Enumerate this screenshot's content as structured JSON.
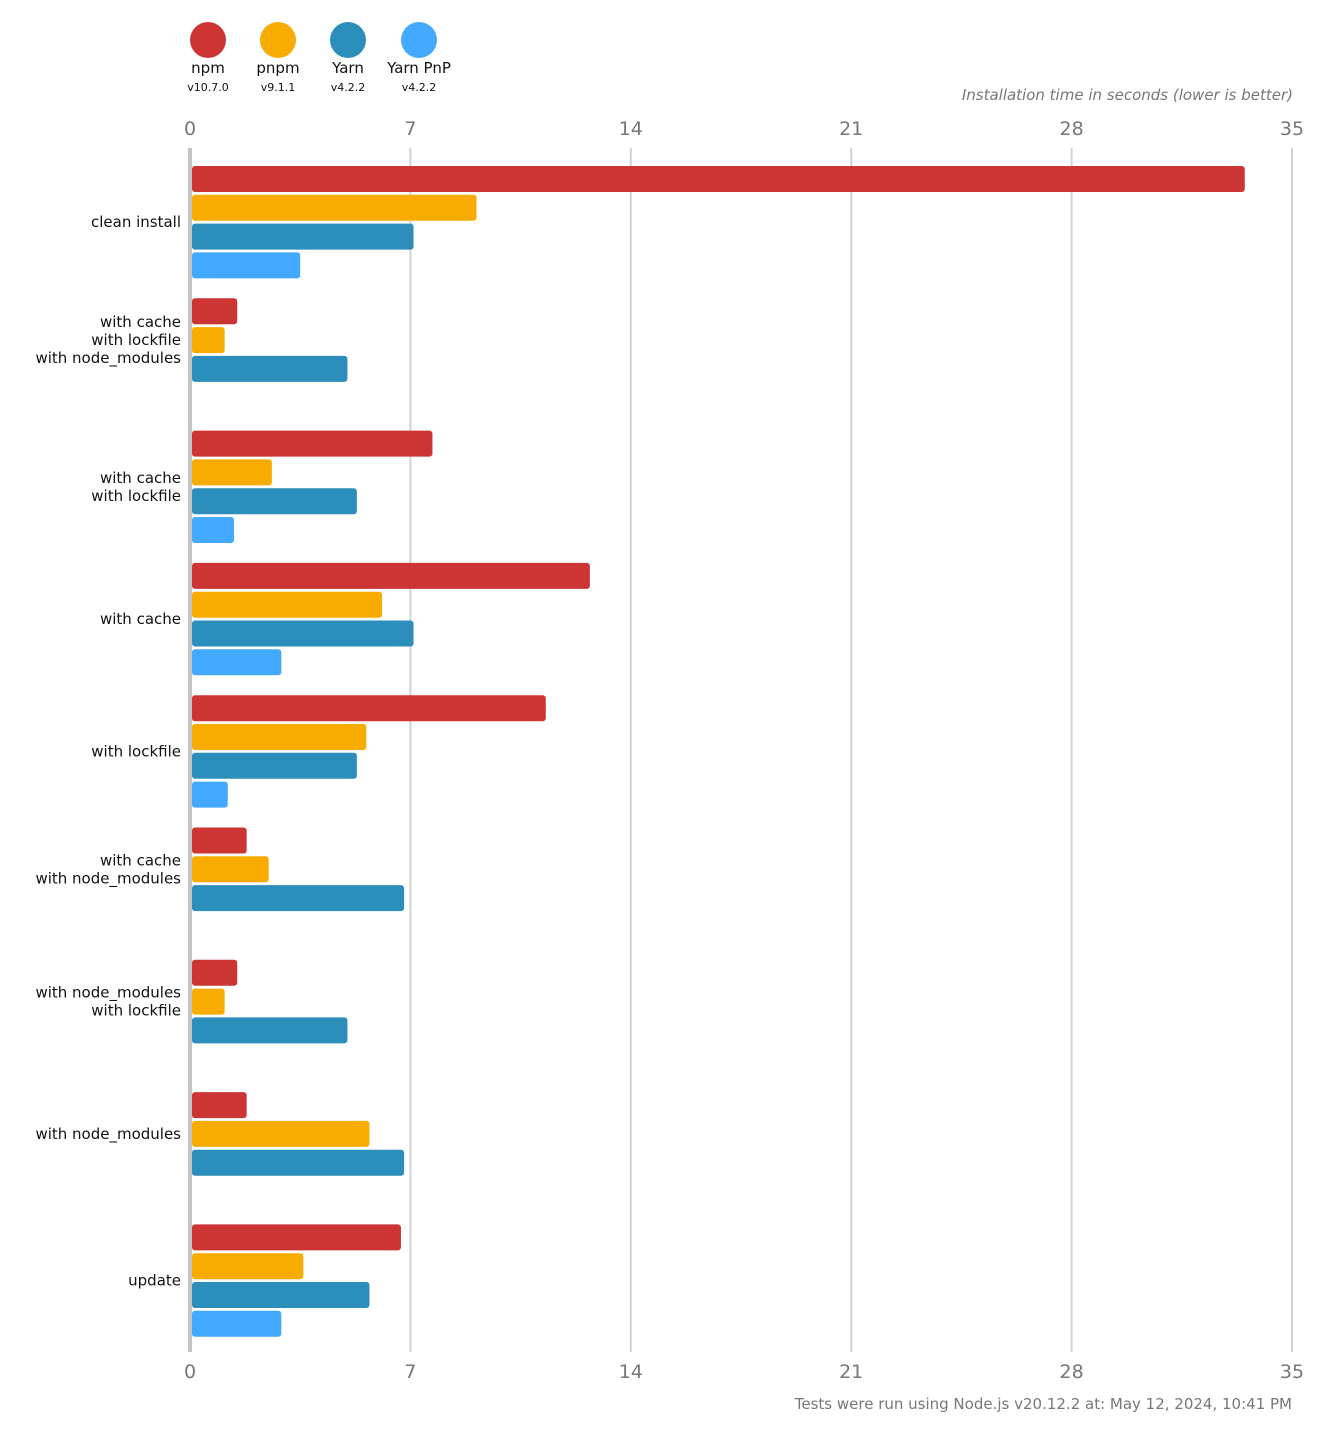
{
  "chart_data": {
    "type": "bar",
    "orientation": "horizontal",
    "axis_title": "Installation time in seconds (lower is better)",
    "footer": "Tests were run using Node.js v20.12.2 at: May 12, 2024, 10:41 PM",
    "xlim": [
      0,
      35
    ],
    "ticks": [
      "0",
      "7",
      "14",
      "21",
      "28",
      "35"
    ],
    "tick_values": [
      0,
      7,
      14,
      21,
      28,
      35
    ],
    "grid": true,
    "legend_position": "top-left",
    "categories": [
      [
        "clean install"
      ],
      [
        "with cache",
        "with lockfile",
        "with node_modules"
      ],
      [
        "with cache",
        "with lockfile"
      ],
      [
        "with cache"
      ],
      [
        "with lockfile"
      ],
      [
        "with cache",
        "with node_modules"
      ],
      [
        "with node_modules",
        "with lockfile"
      ],
      [
        "with node_modules"
      ],
      [
        "update"
      ]
    ],
    "series": [
      {
        "name": "npm",
        "version": "v10.7.0",
        "color": "#cc3534",
        "values": [
          33.5,
          1.5,
          7.7,
          12.7,
          11.3,
          1.8,
          1.5,
          1.8,
          6.7
        ]
      },
      {
        "name": "pnpm",
        "version": "v9.1.1",
        "color": "#f8ab00",
        "values": [
          9.1,
          1.1,
          2.6,
          6.1,
          5.6,
          2.5,
          1.1,
          5.7,
          3.6
        ]
      },
      {
        "name": "Yarn",
        "version": "v4.2.2",
        "color": "#2c8ebb",
        "values": [
          7.1,
          5.0,
          5.3,
          7.1,
          5.3,
          6.8,
          5.0,
          6.8,
          5.7
        ]
      },
      {
        "name": "Yarn PnP",
        "version": "v4.2.2",
        "color": "#42a9ff",
        "values": [
          3.5,
          null,
          1.4,
          2.9,
          1.2,
          null,
          null,
          null,
          2.9
        ]
      }
    ]
  }
}
